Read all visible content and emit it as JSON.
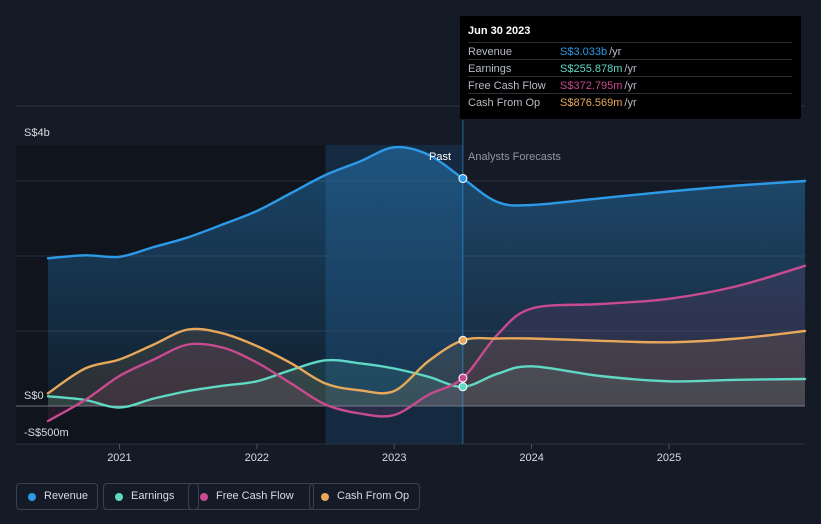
{
  "colors": {
    "revenue": "#2d9ae8",
    "earnings": "#5fd8c4",
    "free_cash_flow": "#c84a8f",
    "cash_from_op": "#e8a85a",
    "grid": "#2a313d",
    "past_highlight": "#1b3c5c"
  },
  "tooltip": {
    "date": "Jun 30 2023",
    "rows": [
      {
        "label": "Revenue",
        "value": "S$3.033b",
        "unit": "/yr",
        "color": "#2d9ae8"
      },
      {
        "label": "Earnings",
        "value": "S$255.878m",
        "unit": "/yr",
        "color": "#5fd8c4"
      },
      {
        "label": "Free Cash Flow",
        "value": "S$372.795m",
        "unit": "/yr",
        "color": "#c84a8f"
      },
      {
        "label": "Cash From Op",
        "value": "S$876.569m",
        "unit": "/yr",
        "color": "#e8a85a"
      }
    ]
  },
  "legend": [
    {
      "label": "Revenue",
      "color": "#2d9ae8"
    },
    {
      "label": "Earnings",
      "color": "#5fd8c4"
    },
    {
      "label": "Free Cash Flow",
      "color": "#c84a8f"
    },
    {
      "label": "Cash From Op",
      "color": "#e8a85a"
    }
  ],
  "chart_data": {
    "type": "line",
    "title": "",
    "y_unit": "S$",
    "ylim": [
      -0.5,
      4.0
    ],
    "xlim": [
      2020.48,
      2025.99
    ],
    "y_label_top": "S$4b",
    "y_label_zero": "S$0",
    "y_label_bottom": "-S$500m",
    "yticks": [
      0,
      1,
      2,
      3,
      4
    ],
    "x_ticks": [
      2021,
      2022,
      2023,
      2024,
      2025
    ],
    "x_tick_labels": [
      "2021",
      "2022",
      "2023",
      "2024",
      "2025"
    ],
    "past_label": "Past",
    "forecast_label": "Analysts Forecasts",
    "past_region": [
      2022.5,
      2023.5
    ],
    "split_x": 2023.5,
    "series": [
      {
        "name": "Revenue",
        "key": "revenue",
        "points": [
          [
            2020.48,
            1.97
          ],
          [
            2020.75,
            2.01
          ],
          [
            2021.0,
            1.99
          ],
          [
            2021.25,
            2.12
          ],
          [
            2021.5,
            2.25
          ],
          [
            2021.75,
            2.42
          ],
          [
            2022.0,
            2.6
          ],
          [
            2022.25,
            2.84
          ],
          [
            2022.5,
            3.08
          ],
          [
            2022.75,
            3.26
          ],
          [
            2023.0,
            3.45
          ],
          [
            2023.25,
            3.35
          ],
          [
            2023.5,
            3.033
          ],
          [
            2023.75,
            2.72
          ],
          [
            2024.0,
            2.68
          ],
          [
            2024.5,
            2.77
          ],
          [
            2025.0,
            2.86
          ],
          [
            2025.5,
            2.94
          ],
          [
            2025.99,
            3.0
          ]
        ]
      },
      {
        "name": "Earnings",
        "key": "earnings",
        "points": [
          [
            2020.48,
            0.13
          ],
          [
            2020.75,
            0.08
          ],
          [
            2021.0,
            -0.02
          ],
          [
            2021.25,
            0.1
          ],
          [
            2021.5,
            0.2
          ],
          [
            2021.75,
            0.27
          ],
          [
            2022.0,
            0.33
          ],
          [
            2022.25,
            0.48
          ],
          [
            2022.5,
            0.61
          ],
          [
            2022.75,
            0.57
          ],
          [
            2023.0,
            0.5
          ],
          [
            2023.25,
            0.39
          ],
          [
            2023.5,
            0.255878
          ],
          [
            2023.75,
            0.43
          ],
          [
            2024.0,
            0.53
          ],
          [
            2024.5,
            0.4
          ],
          [
            2025.0,
            0.33
          ],
          [
            2025.5,
            0.35
          ],
          [
            2025.99,
            0.36
          ]
        ]
      },
      {
        "name": "Free Cash Flow",
        "key": "free_cash_flow",
        "points": [
          [
            2020.48,
            -0.2
          ],
          [
            2020.75,
            0.08
          ],
          [
            2021.0,
            0.4
          ],
          [
            2021.25,
            0.62
          ],
          [
            2021.5,
            0.82
          ],
          [
            2021.75,
            0.78
          ],
          [
            2022.0,
            0.58
          ],
          [
            2022.25,
            0.3
          ],
          [
            2022.5,
            0.02
          ],
          [
            2022.75,
            -0.1
          ],
          [
            2023.0,
            -0.12
          ],
          [
            2023.25,
            0.15
          ],
          [
            2023.5,
            0.372795
          ],
          [
            2023.75,
            0.95
          ],
          [
            2024.0,
            1.3
          ],
          [
            2024.5,
            1.36
          ],
          [
            2025.0,
            1.43
          ],
          [
            2025.5,
            1.6
          ],
          [
            2025.99,
            1.87
          ]
        ]
      },
      {
        "name": "Cash From Op",
        "key": "cash_from_op",
        "points": [
          [
            2020.48,
            0.17
          ],
          [
            2020.75,
            0.5
          ],
          [
            2021.0,
            0.62
          ],
          [
            2021.25,
            0.82
          ],
          [
            2021.5,
            1.02
          ],
          [
            2021.75,
            0.97
          ],
          [
            2022.0,
            0.8
          ],
          [
            2022.25,
            0.57
          ],
          [
            2022.5,
            0.3
          ],
          [
            2022.75,
            0.21
          ],
          [
            2023.0,
            0.2
          ],
          [
            2023.25,
            0.6
          ],
          [
            2023.5,
            0.876569
          ],
          [
            2023.75,
            0.9
          ],
          [
            2024.0,
            0.9
          ],
          [
            2024.5,
            0.87
          ],
          [
            2025.0,
            0.85
          ],
          [
            2025.5,
            0.9
          ],
          [
            2025.99,
            1.0
          ]
        ]
      }
    ]
  }
}
